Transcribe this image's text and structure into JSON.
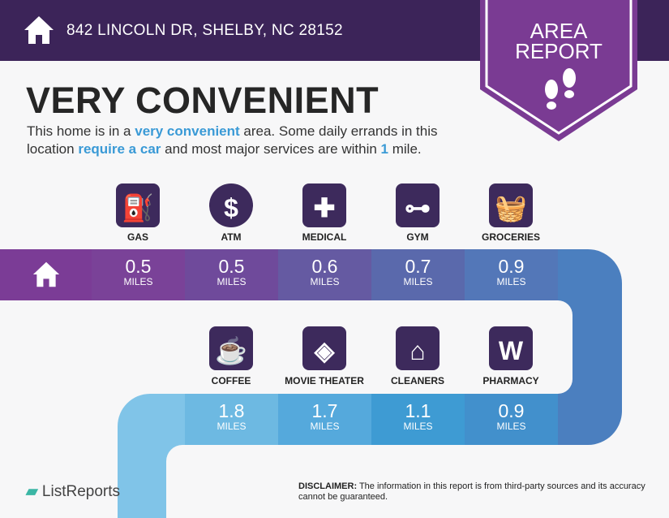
{
  "header": {
    "address": "842 LINCOLN DR, SHELBY, NC 28152",
    "home_icon": "house-icon"
  },
  "badge": {
    "line1": "AREA",
    "line2": "REPORT",
    "icon": "footprints-icon"
  },
  "headline": "VERY CONVENIENT",
  "description": {
    "p1": "This home is in a ",
    "h1": "very convenient",
    "p2": " area. Some daily errands in this location ",
    "h2": "require a car",
    "p3": " and most major services are within ",
    "h3": "1",
    "p4": " mile."
  },
  "row1": [
    {
      "label": "GAS",
      "value": "0.5",
      "unit": "MILES",
      "icon": "gas-pump-icon"
    },
    {
      "label": "ATM",
      "value": "0.5",
      "unit": "MILES",
      "icon": "dollar-icon"
    },
    {
      "label": "MEDICAL",
      "value": "0.6",
      "unit": "MILES",
      "icon": "medical-cross-icon"
    },
    {
      "label": "GYM",
      "value": "0.7",
      "unit": "MILES",
      "icon": "dumbbell-icon"
    },
    {
      "label": "GROCERIES",
      "value": "0.9",
      "unit": "MILES",
      "icon": "basket-icon"
    }
  ],
  "row2": [
    {
      "label": "COFFEE",
      "value": "1.8",
      "unit": "MILES",
      "icon": "coffee-cup-icon"
    },
    {
      "label": "MOVIE THEATER",
      "value": "1.7",
      "unit": "MILES",
      "icon": "ticket-icon"
    },
    {
      "label": "CLEANERS",
      "value": "1.1",
      "unit": "MILES",
      "icon": "hanger-icon"
    },
    {
      "label": "PHARMACY",
      "value": "0.9",
      "unit": "MILES",
      "icon": "walgreens-icon"
    }
  ],
  "footer": {
    "logo": "ListReports",
    "disclaimer_label": "DISCLAIMER:",
    "disclaimer": " The information in this report is from third-party sources and its accuracy cannot be guaranteed."
  },
  "colors": {
    "header": "#3c2459",
    "badge": "#7a3b93",
    "icon": "#3d2a5c"
  }
}
